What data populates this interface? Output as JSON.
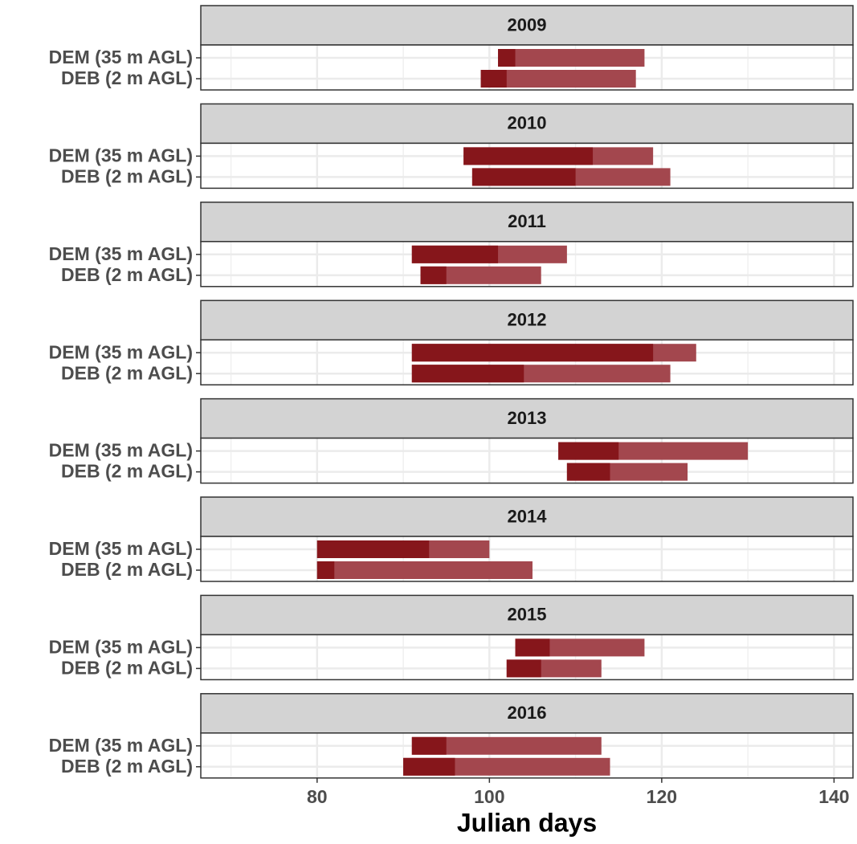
{
  "chart_data": {
    "type": "range-bar",
    "x_label": "Julian days",
    "xlim": [
      66.5,
      142.2
    ],
    "xticks": [
      80,
      100,
      120,
      140
    ],
    "x_minor_grid": [
      70,
      90,
      110,
      130
    ],
    "grid": true,
    "colors": {
      "inner": "#86161b",
      "outer": "#a3474e"
    },
    "categories": [
      "DEM (35 m AGL)",
      "DEB (2 m AGL)"
    ],
    "facets": [
      {
        "title": "2009",
        "start": [
          101,
          99
        ],
        "peak": [
          103,
          102
        ],
        "end": [
          118,
          117
        ]
      },
      {
        "title": "2010",
        "start": [
          97,
          98
        ],
        "peak": [
          112,
          110
        ],
        "end": [
          119,
          121
        ]
      },
      {
        "title": "2011",
        "start": [
          91,
          92
        ],
        "peak": [
          101,
          95
        ],
        "end": [
          109,
          106
        ]
      },
      {
        "title": "2012",
        "start": [
          91,
          91
        ],
        "peak": [
          119,
          104
        ],
        "end": [
          124,
          121
        ]
      },
      {
        "title": "2013",
        "start": [
          108,
          109
        ],
        "peak": [
          115,
          114
        ],
        "end": [
          130,
          123
        ]
      },
      {
        "title": "2014",
        "start": [
          80,
          80
        ],
        "peak": [
          93,
          82
        ],
        "end": [
          100,
          105
        ]
      },
      {
        "title": "2015",
        "start": [
          103,
          102
        ],
        "peak": [
          107,
          106
        ],
        "end": [
          118,
          113
        ]
      },
      {
        "title": "2016",
        "start": [
          91,
          90
        ],
        "peak": [
          95,
          96
        ],
        "end": [
          113,
          114
        ]
      }
    ]
  }
}
